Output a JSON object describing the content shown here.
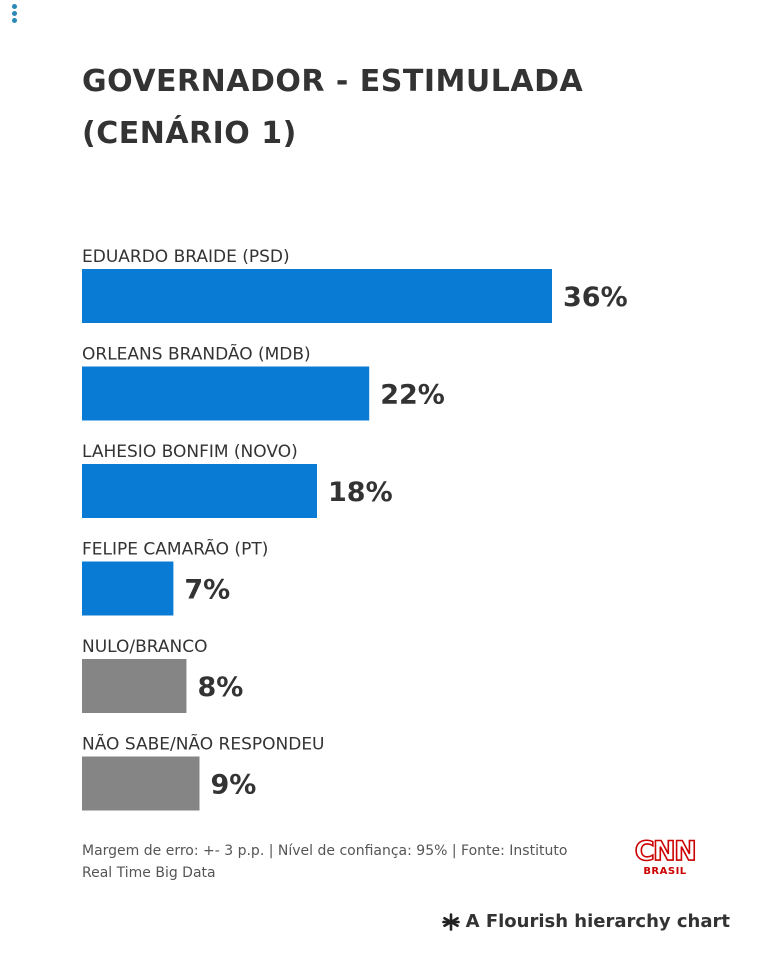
{
  "chart_data": {
    "type": "bar",
    "orientation": "horizontal",
    "title": "GOVERNADOR - ESTIMULADA (CENÁRIO 1)",
    "categories": [
      "EDUARDO BRAIDE (PSD)",
      "ORLEANS BRANDÃO (MDB)",
      "LAHESIO BONFIM (NOVO)",
      "FELIPE CAMARÃO (PT)",
      "NULO/BRANCO",
      "NÃO SABE/NÃO RESPONDEU"
    ],
    "values": [
      36,
      22,
      18,
      7,
      8,
      9
    ],
    "value_labels": [
      "36%",
      "22%",
      "18%",
      "7%",
      "8%",
      "9%"
    ],
    "colors": [
      "#0a7bd4",
      "#0a7bd4",
      "#0a7bd4",
      "#0a7bd4",
      "#858585",
      "#858585"
    ],
    "xlim": [
      0,
      36
    ],
    "grid": false,
    "legend": "none"
  },
  "title_lines": [
    "GOVERNADOR - ESTIMULADA",
    "(CENÁRIO 1)"
  ],
  "footer": {
    "line1": "Margem de erro: +- 3 p.p. | Nível de confiança: 95% | Fonte: Instituto",
    "line2": "Real Time Big Data"
  },
  "logo": {
    "name": "CNN",
    "sub": "BRASIL",
    "color": "#cc0000"
  },
  "attribution": {
    "text": "A Flourish hierarchy chart",
    "icon": "flourish-asterisk-icon"
  },
  "menu": {
    "icon": "more-vertical-icon",
    "color": "#2a8ab5"
  }
}
